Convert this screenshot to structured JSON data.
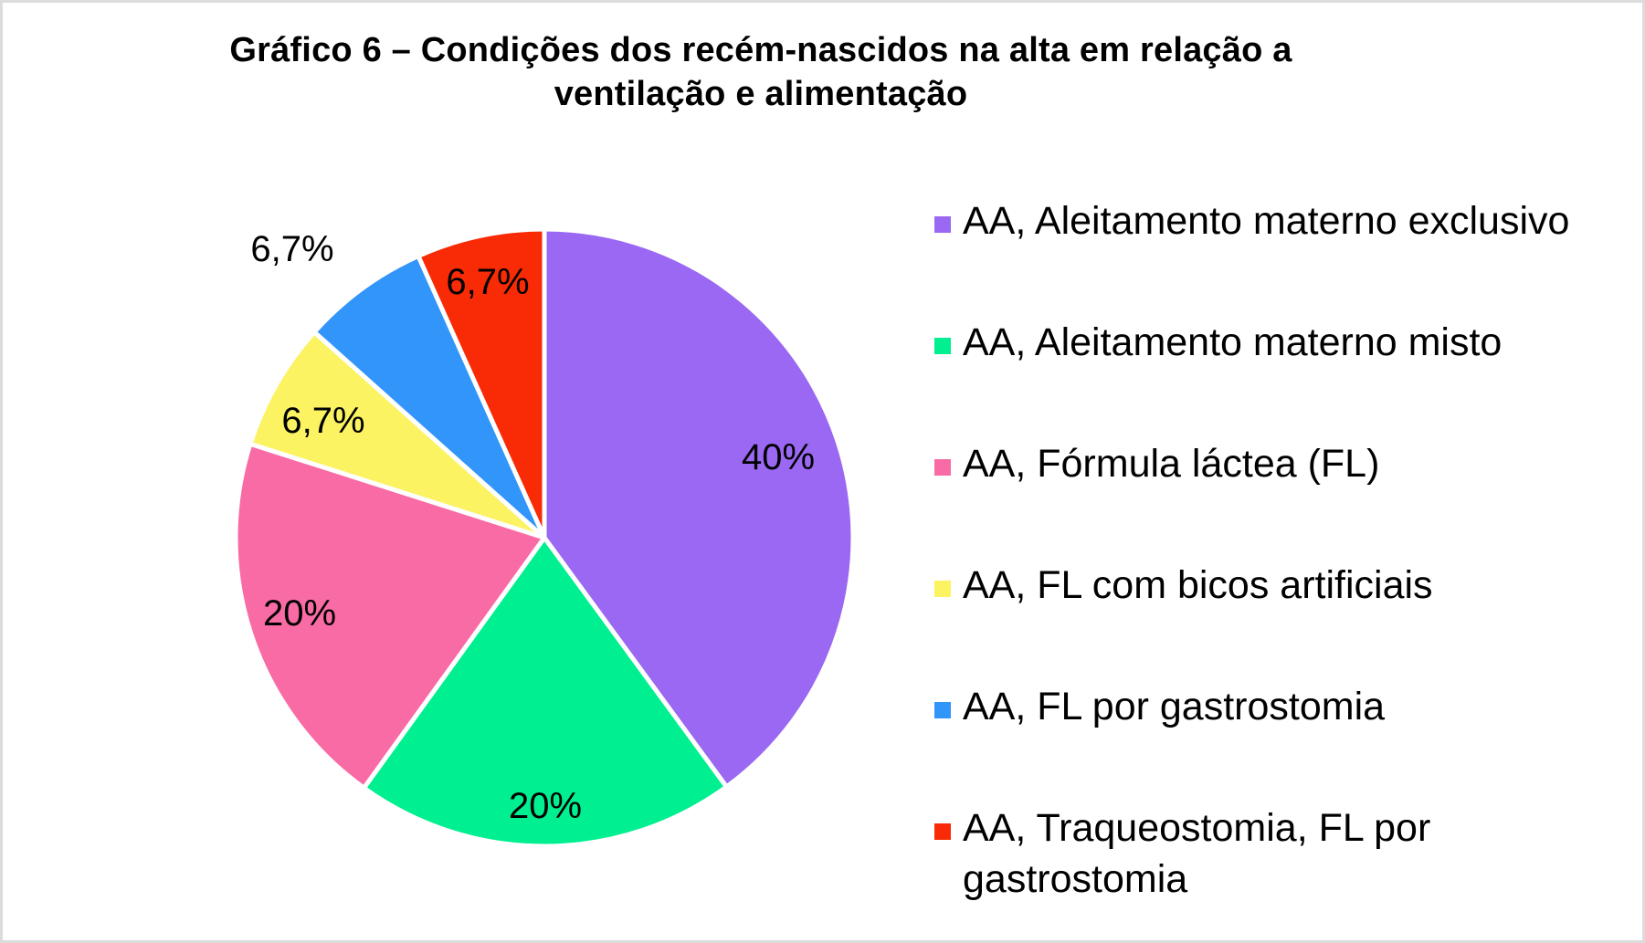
{
  "frame": {
    "background": "#FFFFFF",
    "border_color": "#DCDCDC"
  },
  "title_lines": [
    "Gráfico 6 – Condições dos recém-nascidos na alta em relação a",
    "ventilação e alimentação"
  ],
  "chart_data": {
    "type": "pie",
    "title": "Gráfico 6 – Condições dos recém-nascidos na alta em relação a ventilação e alimentação",
    "start_angle_deg": 0,
    "direction": "clockwise",
    "legend_position": "right",
    "value_label_format": "percent with comma decimal separator",
    "slice_separator_color": "#FFFFFF",
    "slices": [
      {
        "label": "AA, Aleitamento materno exclusivo",
        "value": 40,
        "display": "40%",
        "color": "#9A68F2",
        "label_placement": "inside"
      },
      {
        "label": "AA, Aleitamento materno misto",
        "value": 20,
        "display": "20%",
        "color": "#00EF90",
        "label_placement": "inside"
      },
      {
        "label": "AA, Fórmula láctea (FL)",
        "value": 20,
        "display": "20%",
        "color": "#F96BA4",
        "label_placement": "inside"
      },
      {
        "label": "AA, FL com bicos artificiais",
        "value": 6.7,
        "display": "6,7%",
        "color": "#FBF362",
        "label_placement": "inside"
      },
      {
        "label": "AA, FL por gastrostomia",
        "value": 6.7,
        "display": "6,7%",
        "color": "#3295FA",
        "label_placement": "outside"
      },
      {
        "label": "AA, Traqueostomia, FL por gastrostomia",
        "value": 6.7,
        "display": "6,7%",
        "color": "#F92B06",
        "label_placement": "inside"
      }
    ]
  }
}
